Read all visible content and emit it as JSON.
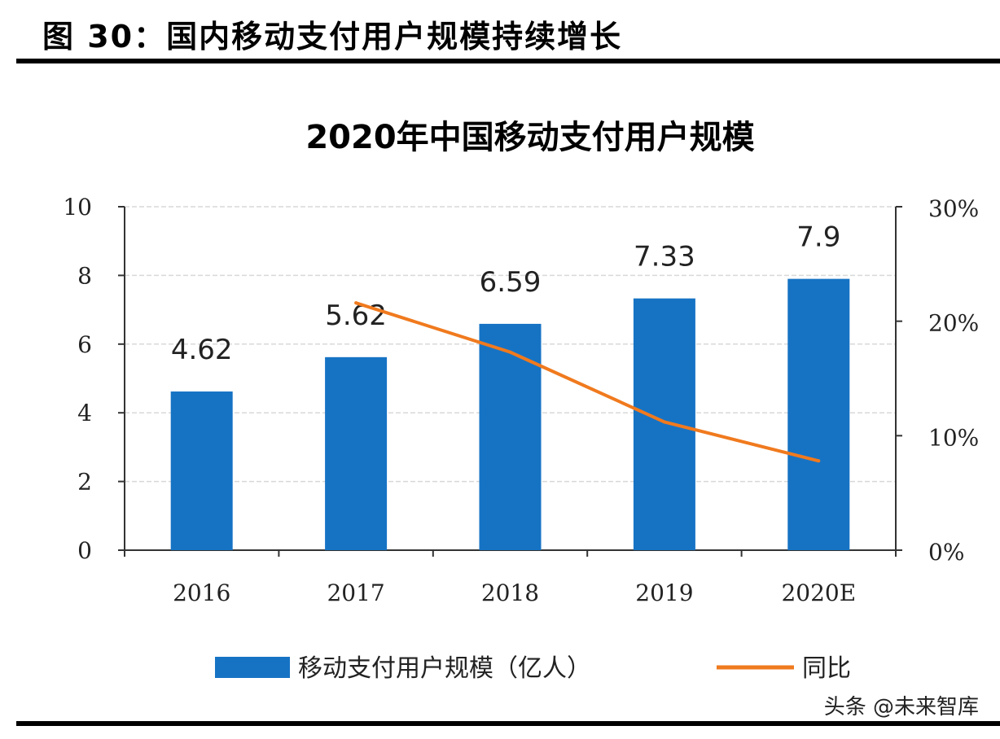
{
  "header": {
    "title": "图 30：国内移动支付用户规模持续增长"
  },
  "watermark": "头条 @未来智库",
  "chart_data": {
    "type": "bar",
    "title": "2020年中国移动支付用户规模",
    "categories": [
      "2016",
      "2017",
      "2018",
      "2019",
      "2020E"
    ],
    "series": [
      {
        "name": "移动支付用户规模（亿人）",
        "type": "bar",
        "axis": "left",
        "values": [
          4.62,
          5.62,
          6.59,
          7.33,
          7.9
        ],
        "data_labels": [
          "4.62",
          "5.62",
          "6.59",
          "7.33",
          "7.9"
        ],
        "color": "#1673c4"
      },
      {
        "name": "同比",
        "type": "line",
        "axis": "right",
        "values": [
          null,
          21.6,
          17.3,
          11.2,
          7.8
        ],
        "color": "#f07a1e"
      }
    ],
    "left_axis": {
      "ylim": [
        0,
        10
      ],
      "ticks": [
        "0",
        "2",
        "4",
        "6",
        "8",
        "10"
      ]
    },
    "right_axis": {
      "ylim": [
        0,
        30
      ],
      "ticks": [
        "0%",
        "10%",
        "20%",
        "30%"
      ]
    },
    "grid": true,
    "legend": "bottom"
  }
}
